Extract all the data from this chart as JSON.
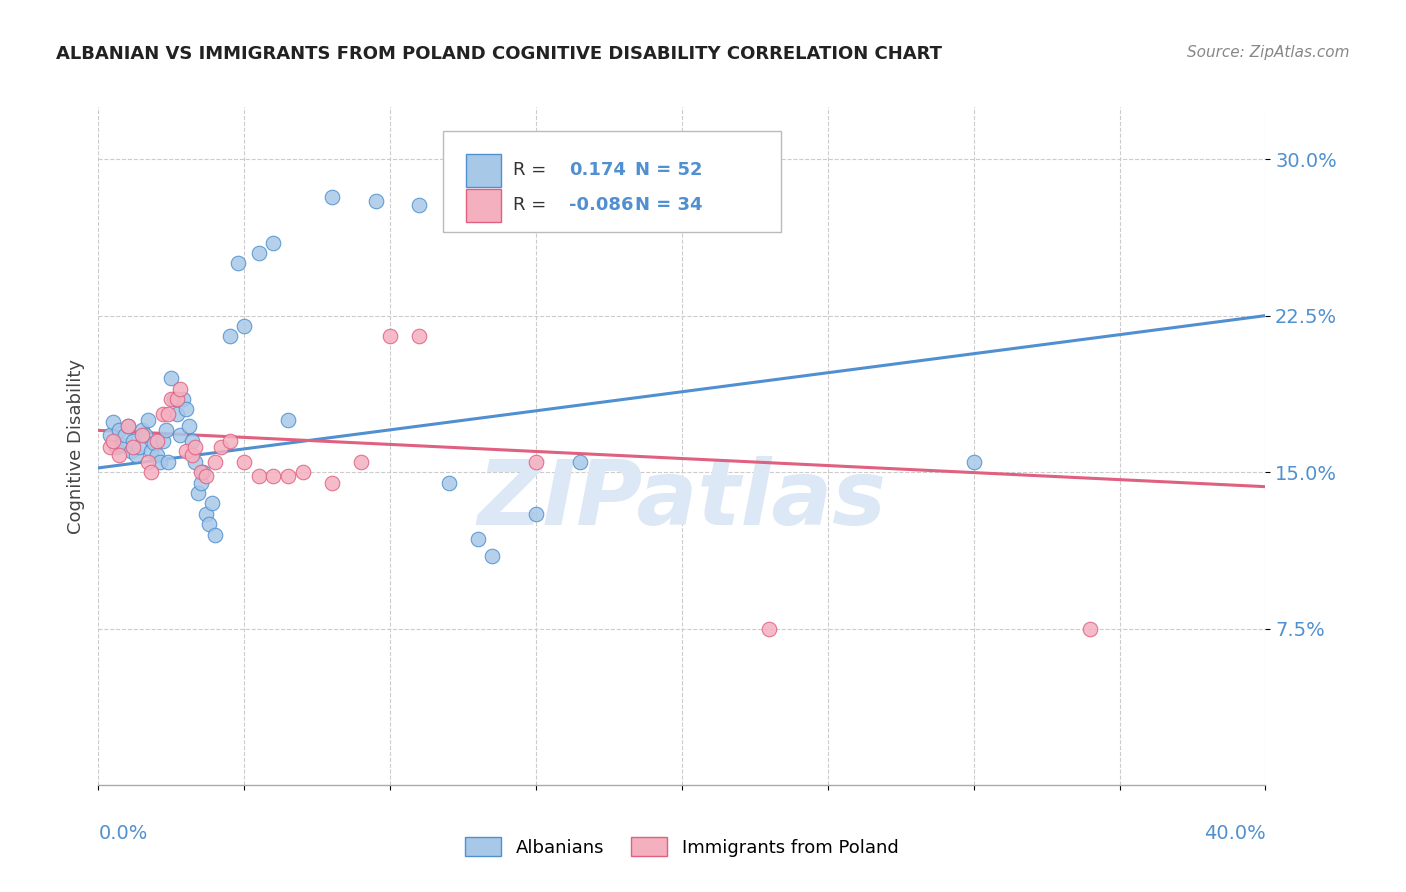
{
  "title": "ALBANIAN VS IMMIGRANTS FROM POLAND COGNITIVE DISABILITY CORRELATION CHART",
  "source": "Source: ZipAtlas.com",
  "ylabel": "Cognitive Disability",
  "ytick_labels": [
    "7.5%",
    "15.0%",
    "22.5%",
    "30.0%"
  ],
  "ytick_values": [
    0.075,
    0.15,
    0.225,
    0.3
  ],
  "xlim": [
    0.0,
    0.4
  ],
  "ylim": [
    0.0,
    0.325
  ],
  "legend_r_albanian": "0.174",
  "legend_n_albanian": "52",
  "legend_r_poland": "-0.086",
  "legend_n_poland": "34",
  "albanian_color": "#a8c8e8",
  "poland_color": "#f5b0c0",
  "line_albanian_color": "#5090d0",
  "line_poland_color": "#e06080",
  "watermark": "ZIPatlas",
  "albanian_scatter": [
    [
      0.004,
      0.168
    ],
    [
      0.005,
      0.174
    ],
    [
      0.006,
      0.162
    ],
    [
      0.007,
      0.17
    ],
    [
      0.008,
      0.163
    ],
    [
      0.009,
      0.168
    ],
    [
      0.01,
      0.172
    ],
    [
      0.011,
      0.16
    ],
    [
      0.012,
      0.165
    ],
    [
      0.013,
      0.158
    ],
    [
      0.014,
      0.162
    ],
    [
      0.015,
      0.17
    ],
    [
      0.016,
      0.168
    ],
    [
      0.017,
      0.175
    ],
    [
      0.018,
      0.16
    ],
    [
      0.019,
      0.164
    ],
    [
      0.02,
      0.158
    ],
    [
      0.021,
      0.155
    ],
    [
      0.022,
      0.165
    ],
    [
      0.023,
      0.17
    ],
    [
      0.024,
      0.155
    ],
    [
      0.025,
      0.195
    ],
    [
      0.026,
      0.185
    ],
    [
      0.027,
      0.178
    ],
    [
      0.028,
      0.168
    ],
    [
      0.029,
      0.185
    ],
    [
      0.03,
      0.18
    ],
    [
      0.031,
      0.172
    ],
    [
      0.032,
      0.165
    ],
    [
      0.033,
      0.155
    ],
    [
      0.034,
      0.14
    ],
    [
      0.035,
      0.145
    ],
    [
      0.036,
      0.15
    ],
    [
      0.037,
      0.13
    ],
    [
      0.038,
      0.125
    ],
    [
      0.039,
      0.135
    ],
    [
      0.04,
      0.12
    ],
    [
      0.045,
      0.215
    ],
    [
      0.048,
      0.25
    ],
    [
      0.05,
      0.22
    ],
    [
      0.055,
      0.255
    ],
    [
      0.06,
      0.26
    ],
    [
      0.065,
      0.175
    ],
    [
      0.08,
      0.282
    ],
    [
      0.095,
      0.28
    ],
    [
      0.11,
      0.278
    ],
    [
      0.12,
      0.145
    ],
    [
      0.13,
      0.118
    ],
    [
      0.135,
      0.11
    ],
    [
      0.15,
      0.13
    ],
    [
      0.165,
      0.155
    ],
    [
      0.3,
      0.155
    ]
  ],
  "poland_scatter": [
    [
      0.004,
      0.162
    ],
    [
      0.005,
      0.165
    ],
    [
      0.007,
      0.158
    ],
    [
      0.01,
      0.172
    ],
    [
      0.012,
      0.162
    ],
    [
      0.015,
      0.168
    ],
    [
      0.017,
      0.155
    ],
    [
      0.018,
      0.15
    ],
    [
      0.02,
      0.165
    ],
    [
      0.022,
      0.178
    ],
    [
      0.024,
      0.178
    ],
    [
      0.025,
      0.185
    ],
    [
      0.027,
      0.185
    ],
    [
      0.028,
      0.19
    ],
    [
      0.03,
      0.16
    ],
    [
      0.032,
      0.158
    ],
    [
      0.033,
      0.162
    ],
    [
      0.035,
      0.15
    ],
    [
      0.037,
      0.148
    ],
    [
      0.04,
      0.155
    ],
    [
      0.042,
      0.162
    ],
    [
      0.045,
      0.165
    ],
    [
      0.05,
      0.155
    ],
    [
      0.055,
      0.148
    ],
    [
      0.06,
      0.148
    ],
    [
      0.065,
      0.148
    ],
    [
      0.07,
      0.15
    ],
    [
      0.08,
      0.145
    ],
    [
      0.09,
      0.155
    ],
    [
      0.1,
      0.215
    ],
    [
      0.11,
      0.215
    ],
    [
      0.15,
      0.155
    ],
    [
      0.23,
      0.075
    ],
    [
      0.34,
      0.075
    ]
  ],
  "line_albanian": {
    "x0": 0.0,
    "x1": 0.4,
    "y0": 0.152,
    "y1": 0.225
  },
  "line_poland": {
    "x0": 0.0,
    "x1": 0.4,
    "y0": 0.17,
    "y1": 0.143
  }
}
